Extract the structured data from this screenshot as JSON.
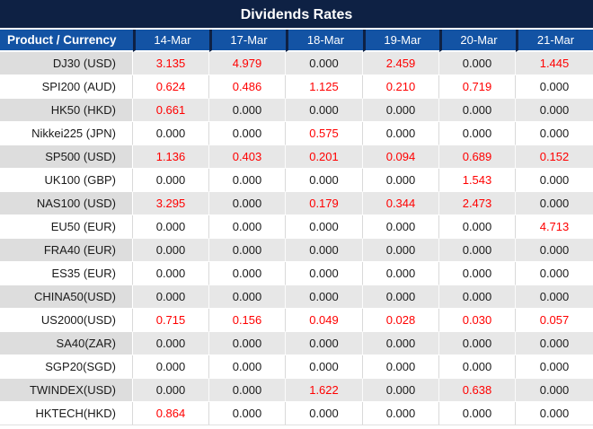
{
  "title": "Dividends Rates",
  "colors": {
    "title_bg": "#0E2144",
    "header_bg": "#1353A4",
    "header_text": "#FFFFFF",
    "row_gray_label_bg": "#DDDDDD",
    "row_gray_value_bg": "#E7E7E7",
    "row_white_bg": "#FFFFFF",
    "value_nonzero": "#FF0000",
    "value_zero": "#1A1A1A"
  },
  "chart_data": {
    "type": "table",
    "title": "Dividends Rates",
    "columns": [
      "Product / Currency",
      "14-Mar",
      "17-Mar",
      "18-Mar",
      "19-Mar",
      "20-Mar",
      "21-Mar"
    ],
    "rows": [
      {
        "product": "DJ30 (USD)",
        "values": [
          "3.135",
          "4.979",
          "0.000",
          "2.459",
          "0.000",
          "1.445"
        ]
      },
      {
        "product": "SPI200 (AUD)",
        "values": [
          "0.624",
          "0.486",
          "1.125",
          "0.210",
          "0.719",
          "0.000"
        ]
      },
      {
        "product": "HK50 (HKD)",
        "values": [
          "0.661",
          "0.000",
          "0.000",
          "0.000",
          "0.000",
          "0.000"
        ]
      },
      {
        "product": "Nikkei225 (JPN)",
        "values": [
          "0.000",
          "0.000",
          "0.575",
          "0.000",
          "0.000",
          "0.000"
        ]
      },
      {
        "product": "SP500 (USD)",
        "values": [
          "1.136",
          "0.403",
          "0.201",
          "0.094",
          "0.689",
          "0.152"
        ]
      },
      {
        "product": "UK100 (GBP)",
        "values": [
          "0.000",
          "0.000",
          "0.000",
          "0.000",
          "1.543",
          "0.000"
        ]
      },
      {
        "product": "NAS100 (USD)",
        "values": [
          "3.295",
          "0.000",
          "0.179",
          "0.344",
          "2.473",
          "0.000"
        ]
      },
      {
        "product": "EU50 (EUR)",
        "values": [
          "0.000",
          "0.000",
          "0.000",
          "0.000",
          "0.000",
          "4.713"
        ]
      },
      {
        "product": "FRA40 (EUR)",
        "values": [
          "0.000",
          "0.000",
          "0.000",
          "0.000",
          "0.000",
          "0.000"
        ]
      },
      {
        "product": "ES35 (EUR)",
        "values": [
          "0.000",
          "0.000",
          "0.000",
          "0.000",
          "0.000",
          "0.000"
        ]
      },
      {
        "product": "CHINA50(USD)",
        "values": [
          "0.000",
          "0.000",
          "0.000",
          "0.000",
          "0.000",
          "0.000"
        ]
      },
      {
        "product": "US2000(USD)",
        "values": [
          "0.715",
          "0.156",
          "0.049",
          "0.028",
          "0.030",
          "0.057"
        ]
      },
      {
        "product": "SA40(ZAR)",
        "values": [
          "0.000",
          "0.000",
          "0.000",
          "0.000",
          "0.000",
          "0.000"
        ]
      },
      {
        "product": "SGP20(SGD)",
        "values": [
          "0.000",
          "0.000",
          "0.000",
          "0.000",
          "0.000",
          "0.000"
        ]
      },
      {
        "product": "TWINDEX(USD)",
        "values": [
          "0.000",
          "0.000",
          "1.622",
          "0.000",
          "0.638",
          "0.000"
        ]
      },
      {
        "product": "HKTECH(HKD)",
        "values": [
          "0.864",
          "0.000",
          "0.000",
          "0.000",
          "0.000",
          "0.000"
        ]
      }
    ],
    "value_color_rule": "non-zero values red, zero values black",
    "layout": {
      "alternating_rows": "odd rows gray, even rows white",
      "legend": "none",
      "grid": "subtle vertical separators"
    }
  }
}
